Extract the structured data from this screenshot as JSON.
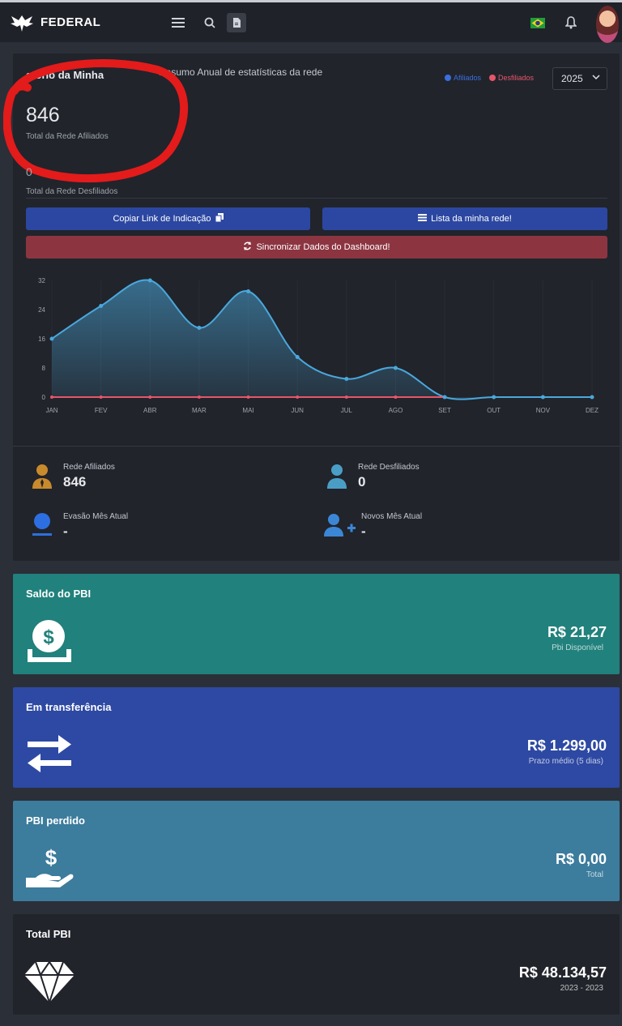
{
  "header": {
    "brand": "FEDERAL"
  },
  "report": {
    "title": "atório da Minha",
    "subtitle": "Resumo Anual de estatísticas da rede",
    "legend": [
      {
        "label": "Afiliados",
        "color": "#3a6fe0"
      },
      {
        "label": "Desfiliados",
        "color": "#e8556a"
      }
    ],
    "year": "2025",
    "total_afiliados": "846",
    "total_afiliados_label": "Total da Rede Afiliados",
    "total_desfiliados": "0",
    "total_desfiliados_label": "Total da Rede Desfiliados",
    "copy_link_label": "Copiar Link de Indicação",
    "network_list_label": "Lista da minha rede!",
    "sync_label": "Sincronizar Dados do Dashboard!"
  },
  "chart_data": {
    "type": "area",
    "x": [
      "JAN",
      "FEV",
      "ABR",
      "MAR",
      "MAI",
      "JUN",
      "JUL",
      "AGO",
      "SET",
      "OUT",
      "NOV",
      "DEZ"
    ],
    "ylim": [
      0,
      32
    ],
    "yticks": [
      "32",
      "24",
      "16",
      "8",
      "0"
    ],
    "series": [
      {
        "name": "Afiliados",
        "values": [
          16,
          25,
          32,
          19,
          29,
          11,
          5,
          8,
          0,
          0,
          0,
          0
        ],
        "color": "#4aa8dc"
      },
      {
        "name": "Desfiliados",
        "values": [
          0,
          0,
          0,
          0,
          0,
          0,
          0,
          0,
          0,
          0,
          0,
          0
        ],
        "color": "#e8556a"
      }
    ]
  },
  "stats": [
    {
      "label": "Rede Afiliados",
      "value": "846",
      "icon": "user-tie-icon",
      "color": "#c98a2c"
    },
    {
      "label": "Rede Desfiliados",
      "value": "0",
      "icon": "user-icon",
      "color": "#4a9ec6"
    },
    {
      "label": "Evasão Mês Atual",
      "value": "-",
      "icon": "user-minus-icon",
      "color": "#2d6fe0"
    },
    {
      "label": "Novos Mês Atual",
      "value": "-",
      "icon": "user-plus-icon",
      "color": "#3c86d6"
    }
  ],
  "pbi_cards": [
    {
      "title": "Saldo do PBI",
      "value": "R$ 21,27",
      "sub": "Pbi Disponível",
      "icon": "money-deposit-icon",
      "color": "#21817c"
    },
    {
      "title": "Em transferência",
      "value": "R$ 1.299,00",
      "sub": "Prazo médio (5 dias)",
      "icon": "transfer-arrows-icon",
      "color": "#2e49a3"
    },
    {
      "title": "PBI perdido",
      "value": "R$ 0,00",
      "sub": "Total",
      "icon": "hand-dollar-icon",
      "color": "#3c7c9d"
    },
    {
      "title": "Total PBI",
      "value": "R$ 48.134,57",
      "sub": "2023 - 2023",
      "icon": "diamond-icon",
      "color": "#21242b"
    }
  ]
}
